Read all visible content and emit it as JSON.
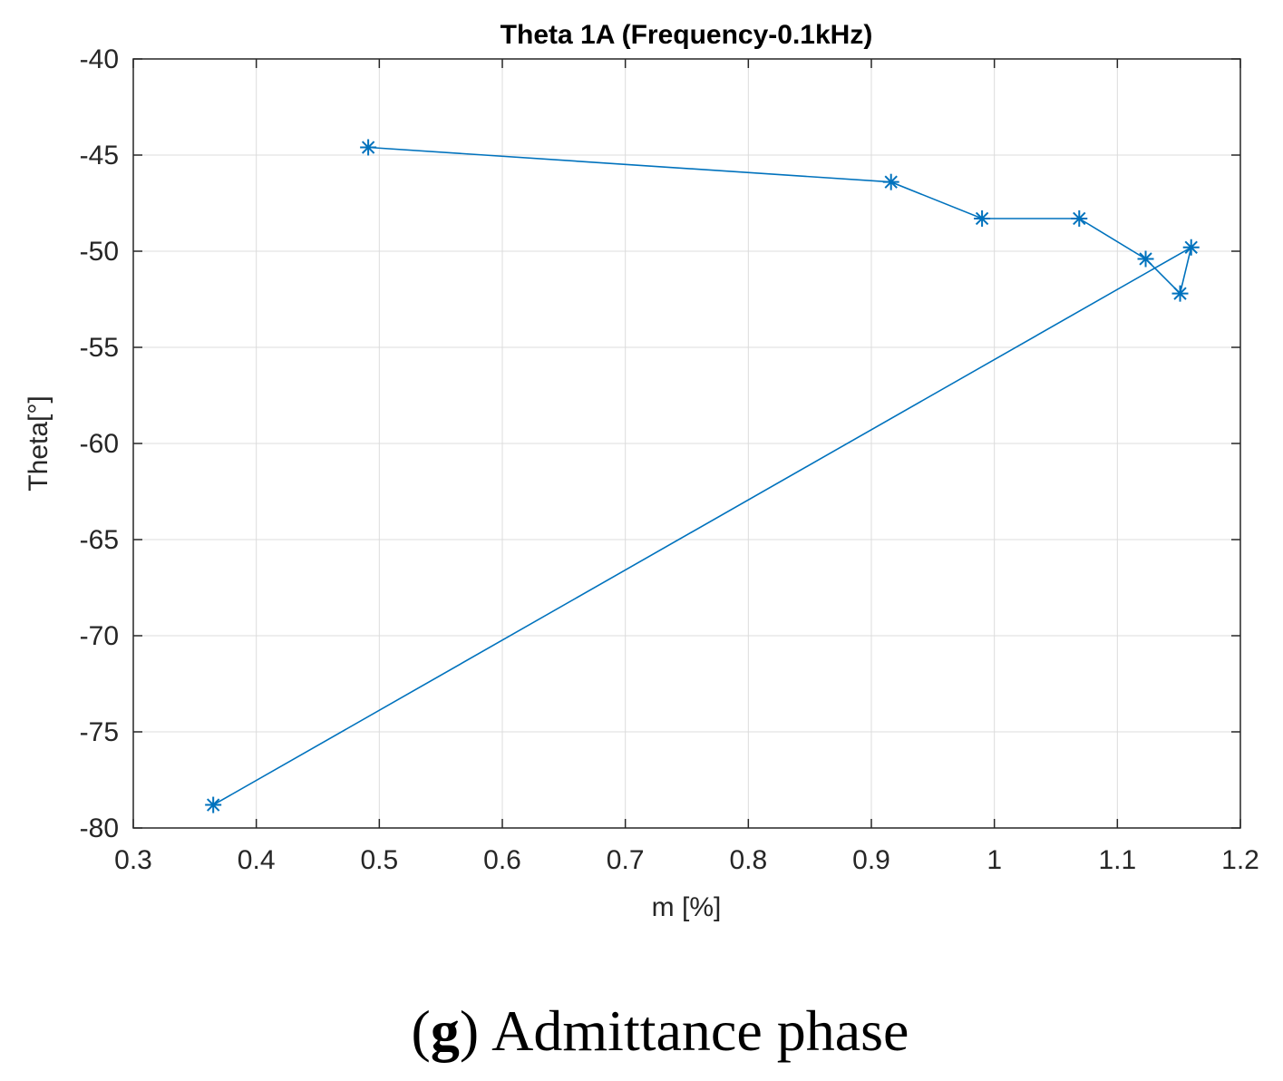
{
  "chart_data": {
    "type": "line",
    "title": "Theta 1A (Frequency-0.1kHz)",
    "xlabel": "m [%]",
    "ylabel": "Theta[°]",
    "xlim": [
      0.3,
      1.2
    ],
    "ylim": [
      -80,
      -40
    ],
    "xticks": [
      "0.3",
      "0.4",
      "0.5",
      "0.6",
      "0.7",
      "0.8",
      "0.9",
      "1",
      "1.1",
      "1.2"
    ],
    "yticks": [
      "-40",
      "-45",
      "-50",
      "-55",
      "-60",
      "-65",
      "-70",
      "-75",
      "-80"
    ],
    "grid": true,
    "marker": "*",
    "series": [
      {
        "name": "Theta 1A",
        "color": "#0072BD",
        "x": [
          0.491,
          0.916,
          0.99,
          1.069,
          1.123,
          1.151,
          1.16,
          0.365
        ],
        "y": [
          -44.6,
          -46.4,
          -48.3,
          -48.3,
          -50.4,
          -52.2,
          -49.8,
          -78.8
        ]
      }
    ]
  },
  "caption": {
    "letter": "g",
    "open_paren": "(",
    "close_paren": ")",
    "text": "Admittance phase"
  }
}
